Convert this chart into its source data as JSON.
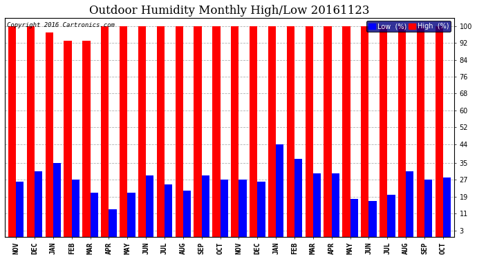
{
  "title": "Outdoor Humidity Monthly High/Low 20161123",
  "copyright": "Copyright 2016 Cartronics.com",
  "months": [
    "NOV",
    "DEC",
    "JAN",
    "FEB",
    "MAR",
    "APR",
    "MAY",
    "JUN",
    "JUL",
    "AUG",
    "SEP",
    "OCT",
    "NOV",
    "DEC",
    "JAN",
    "FEB",
    "MAR",
    "APR",
    "MAY",
    "JUN",
    "JUL",
    "AUG",
    "SEP",
    "OCT"
  ],
  "high": [
    100,
    100,
    97,
    93,
    93,
    100,
    100,
    100,
    100,
    100,
    100,
    100,
    100,
    100,
    100,
    100,
    100,
    100,
    100,
    100,
    100,
    100,
    100,
    100
  ],
  "low": [
    26,
    31,
    35,
    27,
    21,
    13,
    21,
    29,
    25,
    22,
    29,
    27,
    27,
    26,
    44,
    37,
    30,
    30,
    18,
    17,
    20,
    31,
    27,
    28
  ],
  "high_color": "#ff0000",
  "low_color": "#0000ff",
  "bg_color": "#ffffff",
  "grid_color": "#b0b0b0",
  "yticks": [
    3,
    11,
    19,
    27,
    35,
    44,
    52,
    60,
    68,
    76,
    84,
    92,
    100
  ],
  "ylim": [
    0,
    104
  ],
  "title_fontsize": 12,
  "tick_fontsize": 7,
  "legend_fontsize": 7,
  "copyright_fontsize": 6.5
}
